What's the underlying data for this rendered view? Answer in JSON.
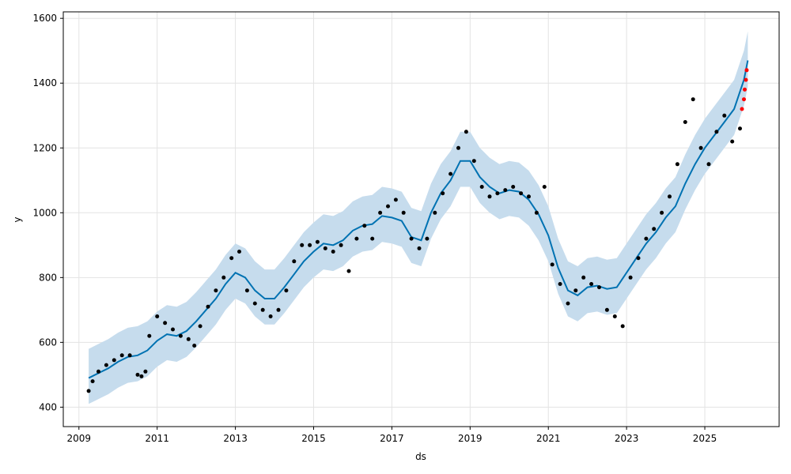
{
  "chart_data": {
    "type": "scatter",
    "title": "",
    "xlabel": "ds",
    "ylabel": "y",
    "xlim": [
      2008.6,
      2026.9
    ],
    "ylim": [
      340,
      1620
    ],
    "grid": true,
    "x_ticks": [
      2009,
      2011,
      2013,
      2015,
      2017,
      2019,
      2021,
      2023,
      2025
    ],
    "y_ticks": [
      400,
      600,
      800,
      1000,
      1200,
      1400,
      1600
    ],
    "colors": {
      "forecast_line": "#0072B2",
      "uncertainty_band": "#c6dced",
      "observed_points": "#000000",
      "recent_points": "#ff0000",
      "grid": "#e3e3e3"
    },
    "series": [
      {
        "name": "forecast",
        "kind": "line",
        "x": [
          2009.25,
          2009.5,
          2009.75,
          2010.0,
          2010.25,
          2010.5,
          2010.75,
          2011.0,
          2011.25,
          2011.5,
          2011.75,
          2012.0,
          2012.25,
          2012.5,
          2012.75,
          2013.0,
          2013.25,
          2013.5,
          2013.75,
          2014.0,
          2014.25,
          2014.5,
          2014.75,
          2015.0,
          2015.25,
          2015.5,
          2015.75,
          2016.0,
          2016.25,
          2016.5,
          2016.75,
          2017.0,
          2017.25,
          2017.5,
          2017.75,
          2018.0,
          2018.25,
          2018.5,
          2018.75,
          2019.0,
          2019.25,
          2019.5,
          2019.75,
          2020.0,
          2020.25,
          2020.5,
          2020.75,
          2021.0,
          2021.25,
          2021.5,
          2021.75,
          2022.0,
          2022.25,
          2022.5,
          2022.75,
          2023.0,
          2023.25,
          2023.5,
          2023.75,
          2024.0,
          2024.25,
          2024.5,
          2024.75,
          2025.0,
          2025.25,
          2025.5,
          2025.75,
          2026.0,
          2026.1
        ],
        "y": [
          490,
          505,
          520,
          540,
          555,
          560,
          575,
          605,
          625,
          620,
          635,
          665,
          700,
          735,
          780,
          815,
          800,
          760,
          735,
          735,
          770,
          810,
          850,
          880,
          905,
          900,
          915,
          945,
          960,
          965,
          990,
          985,
          975,
          925,
          915,
          1000,
          1060,
          1100,
          1160,
          1160,
          1110,
          1080,
          1060,
          1070,
          1065,
          1040,
          995,
          930,
          830,
          760,
          745,
          770,
          775,
          765,
          770,
          815,
          860,
          905,
          940,
          985,
          1020,
          1090,
          1150,
          1200,
          1240,
          1280,
          1320,
          1410,
          1470
        ]
      },
      {
        "name": "uncertainty",
        "kind": "band",
        "x": [
          2009.25,
          2009.5,
          2009.75,
          2010.0,
          2010.25,
          2010.5,
          2010.75,
          2011.0,
          2011.25,
          2011.5,
          2011.75,
          2012.0,
          2012.25,
          2012.5,
          2012.75,
          2013.0,
          2013.25,
          2013.5,
          2013.75,
          2014.0,
          2014.25,
          2014.5,
          2014.75,
          2015.0,
          2015.25,
          2015.5,
          2015.75,
          2016.0,
          2016.25,
          2016.5,
          2016.75,
          2017.0,
          2017.25,
          2017.5,
          2017.75,
          2018.0,
          2018.25,
          2018.5,
          2018.75,
          2019.0,
          2019.25,
          2019.5,
          2019.75,
          2020.0,
          2020.25,
          2020.5,
          2020.75,
          2021.0,
          2021.25,
          2021.5,
          2021.75,
          2022.0,
          2022.25,
          2022.5,
          2022.75,
          2023.0,
          2023.25,
          2023.5,
          2023.75,
          2024.0,
          2024.25,
          2024.5,
          2024.75,
          2025.0,
          2025.25,
          2025.5,
          2025.75,
          2026.0,
          2026.1
        ],
        "lower": [
          410,
          425,
          440,
          460,
          475,
          480,
          495,
          525,
          545,
          540,
          555,
          585,
          620,
          655,
          700,
          735,
          720,
          680,
          655,
          655,
          690,
          730,
          770,
          800,
          825,
          820,
          835,
          865,
          880,
          885,
          910,
          905,
          895,
          845,
          835,
          920,
          980,
          1020,
          1080,
          1080,
          1030,
          1000,
          980,
          990,
          985,
          960,
          915,
          850,
          750,
          680,
          665,
          690,
          695,
          685,
          690,
          735,
          780,
          825,
          860,
          905,
          940,
          1010,
          1070,
          1120,
          1160,
          1200,
          1240,
          1330,
          1390
        ],
        "upper": [
          580,
          595,
          610,
          630,
          645,
          650,
          665,
          695,
          715,
          710,
          725,
          755,
          790,
          825,
          870,
          905,
          890,
          850,
          825,
          825,
          860,
          900,
          940,
          970,
          995,
          990,
          1005,
          1035,
          1050,
          1055,
          1080,
          1075,
          1065,
          1015,
          1005,
          1090,
          1150,
          1190,
          1250,
          1250,
          1200,
          1170,
          1150,
          1160,
          1155,
          1130,
          1085,
          1020,
          920,
          850,
          835,
          860,
          865,
          855,
          860,
          905,
          950,
          995,
          1030,
          1075,
          1110,
          1180,
          1240,
          1290,
          1330,
          1370,
          1410,
          1500,
          1560
        ]
      },
      {
        "name": "observed",
        "kind": "points",
        "x": [
          2009.25,
          2009.35,
          2009.5,
          2009.7,
          2009.9,
          2010.1,
          2010.3,
          2010.5,
          2010.6,
          2010.7,
          2010.8,
          2011.0,
          2011.2,
          2011.4,
          2011.6,
          2011.8,
          2011.95,
          2012.1,
          2012.3,
          2012.5,
          2012.7,
          2012.9,
          2013.1,
          2013.3,
          2013.5,
          2013.7,
          2013.9,
          2014.1,
          2014.3,
          2014.5,
          2014.7,
          2014.9,
          2015.1,
          2015.3,
          2015.5,
          2015.7,
          2015.9,
          2016.1,
          2016.3,
          2016.5,
          2016.7,
          2016.9,
          2017.1,
          2017.3,
          2017.5,
          2017.7,
          2017.9,
          2018.1,
          2018.3,
          2018.5,
          2018.7,
          2018.9,
          2019.1,
          2019.3,
          2019.5,
          2019.7,
          2019.9,
          2020.1,
          2020.3,
          2020.5,
          2020.7,
          2020.9,
          2021.1,
          2021.3,
          2021.5,
          2021.7,
          2021.9,
          2022.1,
          2022.3,
          2022.5,
          2022.7,
          2022.9,
          2023.1,
          2023.3,
          2023.5,
          2023.7,
          2023.9,
          2024.1,
          2024.3,
          2024.5,
          2024.7,
          2024.9,
          2025.1,
          2025.3,
          2025.5,
          2025.7,
          2025.9
        ],
        "y": [
          450,
          480,
          510,
          530,
          545,
          560,
          560,
          500,
          495,
          510,
          620,
          680,
          660,
          640,
          620,
          610,
          590,
          650,
          710,
          760,
          800,
          860,
          880,
          760,
          720,
          700,
          680,
          700,
          760,
          850,
          900,
          900,
          910,
          890,
          880,
          900,
          820,
          920,
          960,
          920,
          1000,
          1020,
          1040,
          1000,
          920,
          890,
          920,
          1000,
          1060,
          1120,
          1200,
          1250,
          1160,
          1080,
          1050,
          1060,
          1070,
          1080,
          1060,
          1050,
          1000,
          1080,
          840,
          780,
          720,
          760,
          800,
          780,
          770,
          700,
          680,
          650,
          800,
          860,
          920,
          950,
          1000,
          1050,
          1150,
          1280,
          1350,
          1200,
          1150,
          1250,
          1300,
          1220,
          1260
        ]
      },
      {
        "name": "recent",
        "kind": "points",
        "x": [
          2025.95,
          2026.0,
          2026.02,
          2026.05,
          2026.07
        ],
        "y": [
          1320,
          1350,
          1380,
          1410,
          1440
        ]
      }
    ]
  }
}
